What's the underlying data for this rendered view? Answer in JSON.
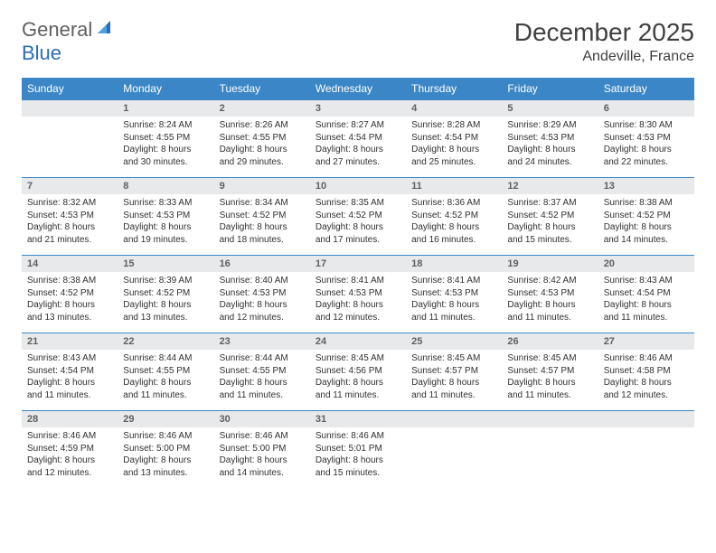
{
  "logo": {
    "part1": "General",
    "part2": "Blue"
  },
  "title": "December 2025",
  "location": "Andeville, France",
  "colors": {
    "header_bg": "#3b86c6",
    "header_fg": "#ffffff",
    "daynum_bg": "#e8e9ea",
    "cell_border": "#3b86c6",
    "logo_blue": "#2a6db8",
    "logo_gray": "#606060"
  },
  "weekdays": [
    "Sunday",
    "Monday",
    "Tuesday",
    "Wednesday",
    "Thursday",
    "Friday",
    "Saturday"
  ],
  "rows": [
    [
      {
        "n": "",
        "sr": "",
        "ss": "",
        "dl": ""
      },
      {
        "n": "1",
        "sr": "8:24 AM",
        "ss": "4:55 PM",
        "dl": "8 hours and 30 minutes."
      },
      {
        "n": "2",
        "sr": "8:26 AM",
        "ss": "4:55 PM",
        "dl": "8 hours and 29 minutes."
      },
      {
        "n": "3",
        "sr": "8:27 AM",
        "ss": "4:54 PM",
        "dl": "8 hours and 27 minutes."
      },
      {
        "n": "4",
        "sr": "8:28 AM",
        "ss": "4:54 PM",
        "dl": "8 hours and 25 minutes."
      },
      {
        "n": "5",
        "sr": "8:29 AM",
        "ss": "4:53 PM",
        "dl": "8 hours and 24 minutes."
      },
      {
        "n": "6",
        "sr": "8:30 AM",
        "ss": "4:53 PM",
        "dl": "8 hours and 22 minutes."
      }
    ],
    [
      {
        "n": "7",
        "sr": "8:32 AM",
        "ss": "4:53 PM",
        "dl": "8 hours and 21 minutes."
      },
      {
        "n": "8",
        "sr": "8:33 AM",
        "ss": "4:53 PM",
        "dl": "8 hours and 19 minutes."
      },
      {
        "n": "9",
        "sr": "8:34 AM",
        "ss": "4:52 PM",
        "dl": "8 hours and 18 minutes."
      },
      {
        "n": "10",
        "sr": "8:35 AM",
        "ss": "4:52 PM",
        "dl": "8 hours and 17 minutes."
      },
      {
        "n": "11",
        "sr": "8:36 AM",
        "ss": "4:52 PM",
        "dl": "8 hours and 16 minutes."
      },
      {
        "n": "12",
        "sr": "8:37 AM",
        "ss": "4:52 PM",
        "dl": "8 hours and 15 minutes."
      },
      {
        "n": "13",
        "sr": "8:38 AM",
        "ss": "4:52 PM",
        "dl": "8 hours and 14 minutes."
      }
    ],
    [
      {
        "n": "14",
        "sr": "8:38 AM",
        "ss": "4:52 PM",
        "dl": "8 hours and 13 minutes."
      },
      {
        "n": "15",
        "sr": "8:39 AM",
        "ss": "4:52 PM",
        "dl": "8 hours and 13 minutes."
      },
      {
        "n": "16",
        "sr": "8:40 AM",
        "ss": "4:53 PM",
        "dl": "8 hours and 12 minutes."
      },
      {
        "n": "17",
        "sr": "8:41 AM",
        "ss": "4:53 PM",
        "dl": "8 hours and 12 minutes."
      },
      {
        "n": "18",
        "sr": "8:41 AM",
        "ss": "4:53 PM",
        "dl": "8 hours and 11 minutes."
      },
      {
        "n": "19",
        "sr": "8:42 AM",
        "ss": "4:53 PM",
        "dl": "8 hours and 11 minutes."
      },
      {
        "n": "20",
        "sr": "8:43 AM",
        "ss": "4:54 PM",
        "dl": "8 hours and 11 minutes."
      }
    ],
    [
      {
        "n": "21",
        "sr": "8:43 AM",
        "ss": "4:54 PM",
        "dl": "8 hours and 11 minutes."
      },
      {
        "n": "22",
        "sr": "8:44 AM",
        "ss": "4:55 PM",
        "dl": "8 hours and 11 minutes."
      },
      {
        "n": "23",
        "sr": "8:44 AM",
        "ss": "4:55 PM",
        "dl": "8 hours and 11 minutes."
      },
      {
        "n": "24",
        "sr": "8:45 AM",
        "ss": "4:56 PM",
        "dl": "8 hours and 11 minutes."
      },
      {
        "n": "25",
        "sr": "8:45 AM",
        "ss": "4:57 PM",
        "dl": "8 hours and 11 minutes."
      },
      {
        "n": "26",
        "sr": "8:45 AM",
        "ss": "4:57 PM",
        "dl": "8 hours and 11 minutes."
      },
      {
        "n": "27",
        "sr": "8:46 AM",
        "ss": "4:58 PM",
        "dl": "8 hours and 12 minutes."
      }
    ],
    [
      {
        "n": "28",
        "sr": "8:46 AM",
        "ss": "4:59 PM",
        "dl": "8 hours and 12 minutes."
      },
      {
        "n": "29",
        "sr": "8:46 AM",
        "ss": "5:00 PM",
        "dl": "8 hours and 13 minutes."
      },
      {
        "n": "30",
        "sr": "8:46 AM",
        "ss": "5:00 PM",
        "dl": "8 hours and 14 minutes."
      },
      {
        "n": "31",
        "sr": "8:46 AM",
        "ss": "5:01 PM",
        "dl": "8 hours and 15 minutes."
      },
      {
        "n": "",
        "sr": "",
        "ss": "",
        "dl": ""
      },
      {
        "n": "",
        "sr": "",
        "ss": "",
        "dl": ""
      },
      {
        "n": "",
        "sr": "",
        "ss": "",
        "dl": ""
      }
    ]
  ],
  "labels": {
    "sunrise": "Sunrise:",
    "sunset": "Sunset:",
    "daylight": "Daylight:"
  }
}
